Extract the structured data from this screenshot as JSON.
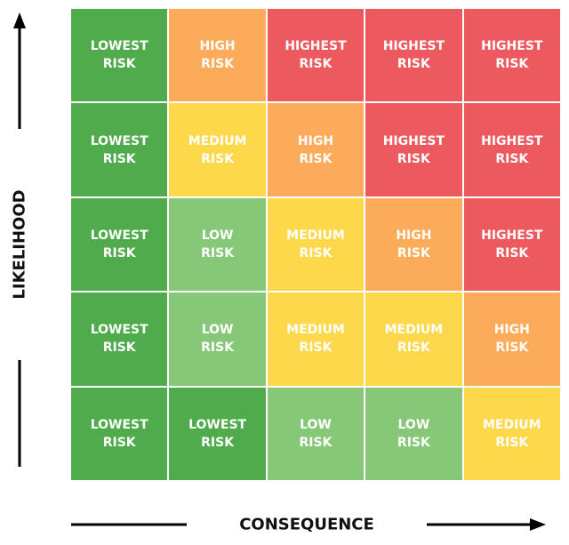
{
  "y_axis_label": "LIKELIHOOD",
  "x_axis_label": "CONSEQUENCE",
  "matrix": {
    "rows": [
      [
        {
          "lines": [
            "LOWEST",
            "RISK"
          ],
          "color": "#4fab4b"
        },
        {
          "lines": [
            "HIGH",
            "RISK"
          ],
          "color": "#fbab59"
        },
        {
          "lines": [
            "HIGHEST",
            "RISK"
          ],
          "color": "#ec5a5f"
        },
        {
          "lines": [
            "HIGHEST",
            "RISK"
          ],
          "color": "#ec5a5f"
        },
        {
          "lines": [
            "HIGHEST",
            "RISK"
          ],
          "color": "#ec5a5f"
        }
      ],
      [
        {
          "lines": [
            "LOWEST",
            "RISK"
          ],
          "color": "#4fab4b"
        },
        {
          "lines": [
            "MEDIUM",
            "RISK"
          ],
          "color": "#fdd84b"
        },
        {
          "lines": [
            "HIGH",
            "RISK"
          ],
          "color": "#fbab59"
        },
        {
          "lines": [
            "HIGHEST",
            "RISK"
          ],
          "color": "#ec5a5f"
        },
        {
          "lines": [
            "HIGHEST",
            "RISK"
          ],
          "color": "#ec5a5f"
        }
      ],
      [
        {
          "lines": [
            "LOWEST",
            "RISK"
          ],
          "color": "#4fab4b"
        },
        {
          "lines": [
            "LOW",
            "RISK"
          ],
          "color": "#86c878"
        },
        {
          "lines": [
            "MEDIUM",
            "RISK"
          ],
          "color": "#fdd84b"
        },
        {
          "lines": [
            "HIGH",
            "RISK"
          ],
          "color": "#fbab59"
        },
        {
          "lines": [
            "HIGHEST",
            "RISK"
          ],
          "color": "#ec5a5f"
        }
      ],
      [
        {
          "lines": [
            "LOWEST",
            "RISK"
          ],
          "color": "#4fab4b"
        },
        {
          "lines": [
            "LOW",
            "RISK"
          ],
          "color": "#86c878"
        },
        {
          "lines": [
            "MEDIUM",
            "RISK"
          ],
          "color": "#fdd84b"
        },
        {
          "lines": [
            "MEDIUM",
            "RISK"
          ],
          "color": "#fdd84b"
        },
        {
          "lines": [
            "HIGH",
            "RISK"
          ],
          "color": "#fbab59"
        }
      ],
      [
        {
          "lines": [
            "LOWEST",
            "RISK"
          ],
          "color": "#4fab4b"
        },
        {
          "lines": [
            "LOWEST",
            "RISK"
          ],
          "color": "#4fab4b"
        },
        {
          "lines": [
            "LOW",
            "RISK"
          ],
          "color": "#86c878"
        },
        {
          "lines": [
            "LOW",
            "RISK"
          ],
          "color": "#86c878"
        },
        {
          "lines": [
            "MEDIUM",
            "RISK"
          ],
          "color": "#fdd84b"
        }
      ]
    ]
  }
}
